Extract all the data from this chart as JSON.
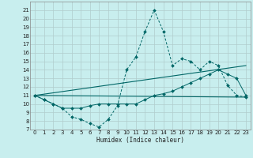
{
  "title": "",
  "xlabel": "Humidex (Indice chaleur)",
  "bg_color": "#c8eeee",
  "grid_color": "#b0cccc",
  "line_color": "#006666",
  "xlim": [
    -0.5,
    23.5
  ],
  "ylim": [
    7,
    22
  ],
  "yticks": [
    7,
    8,
    9,
    10,
    11,
    12,
    13,
    14,
    15,
    16,
    17,
    18,
    19,
    20,
    21
  ],
  "xticks": [
    0,
    1,
    2,
    3,
    4,
    5,
    6,
    7,
    8,
    9,
    10,
    11,
    12,
    13,
    14,
    15,
    16,
    17,
    18,
    19,
    20,
    21,
    22,
    23
  ],
  "line1_x": [
    0,
    1,
    2,
    3,
    4,
    5,
    6,
    7,
    8,
    9,
    10,
    11,
    12,
    13,
    14,
    15,
    16,
    17,
    18,
    19,
    20,
    21,
    22,
    23
  ],
  "line1_y": [
    11,
    10.5,
    10,
    9.5,
    8.5,
    8.2,
    7.7,
    7.3,
    8.2,
    9.8,
    14,
    15.5,
    18.5,
    21,
    18.5,
    14.5,
    15.3,
    15,
    14,
    15,
    14.5,
    12.2,
    11,
    10.8
  ],
  "line2_x": [
    0,
    23
  ],
  "line2_y": [
    11,
    10.8
  ],
  "line3_x": [
    0,
    23
  ],
  "line3_y": [
    11,
    14.5
  ],
  "line4_x": [
    0,
    1,
    2,
    3,
    4,
    5,
    6,
    7,
    8,
    9,
    10,
    11,
    12,
    13,
    14,
    15,
    16,
    17,
    18,
    19,
    20,
    21,
    22,
    23
  ],
  "line4_y": [
    11,
    10.5,
    10,
    9.5,
    9.5,
    9.5,
    9.8,
    10.0,
    10.0,
    10.0,
    10.0,
    10.0,
    10.5,
    11.0,
    11.2,
    11.5,
    12.0,
    12.5,
    13.0,
    13.5,
    14.0,
    13.5,
    13.0,
    11.0
  ]
}
